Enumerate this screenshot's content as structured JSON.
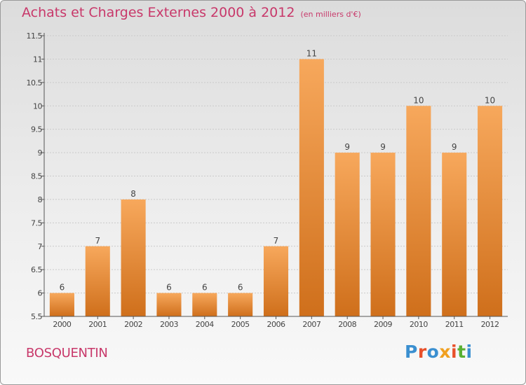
{
  "title": "Achats et Charges Externes 2000 à 2012",
  "unit": "(en milliers d'€)",
  "commune": "BOSQUENTIN",
  "logo_text": "Proxiti",
  "logo_colors": [
    "#3a8fd0",
    "#e8502a",
    "#3a8fd0",
    "#f0a020",
    "#e8502a",
    "#59b033",
    "#3a8fd0"
  ],
  "colors": {
    "title": "#c8386a",
    "bar_light": "#f7a85c",
    "bar_dark": "#cf6f1b",
    "grid": "#c9c9c9",
    "text": "#444444"
  },
  "chart_data": {
    "type": "bar",
    "title": "Achats et Charges Externes 2000 à 2012",
    "xlabel": "",
    "ylabel": "",
    "categories": [
      "2000",
      "2001",
      "2002",
      "2003",
      "2004",
      "2005",
      "2006",
      "2007",
      "2008",
      "2009",
      "2010",
      "2011",
      "2012"
    ],
    "values": [
      6,
      7,
      8,
      6,
      6,
      6,
      7,
      11,
      9,
      9,
      10,
      9,
      10
    ],
    "data_labels": [
      "6",
      "7",
      "8",
      "6",
      "6",
      "6",
      "7",
      "11",
      "9",
      "9",
      "10",
      "9",
      "10"
    ],
    "ylim": [
      5.5,
      11.5
    ],
    "yticks": [
      "5.5",
      "6",
      "6.5",
      "7",
      "7.5",
      "8",
      "8.5",
      "9",
      "9.5",
      "10",
      "10.5",
      "11",
      "11.5"
    ],
    "grid": true,
    "legend": "none"
  }
}
